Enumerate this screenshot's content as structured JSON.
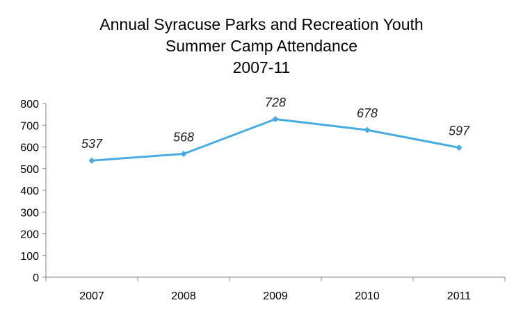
{
  "chart_data": {
    "type": "line",
    "title_lines": [
      "Annual Syracuse Parks and Recreation Youth",
      "Summer Camp Attendance",
      "2007-11"
    ],
    "categories": [
      "2007",
      "2008",
      "2009",
      "2010",
      "2011"
    ],
    "series": [
      {
        "values": [
          537,
          568,
          728,
          678,
          597
        ],
        "data_labels": [
          "537",
          "568",
          "728",
          "678",
          "597"
        ]
      }
    ],
    "y_ticks": [
      "0",
      "100",
      "200",
      "300",
      "400",
      "500",
      "600",
      "700",
      "800"
    ],
    "ylim": [
      0,
      800
    ],
    "xlabel": "",
    "ylabel": "",
    "grid": false,
    "legend": "none",
    "colors": {
      "line": "#46ACE0",
      "axis": "#868686",
      "text": "#000000"
    }
  }
}
